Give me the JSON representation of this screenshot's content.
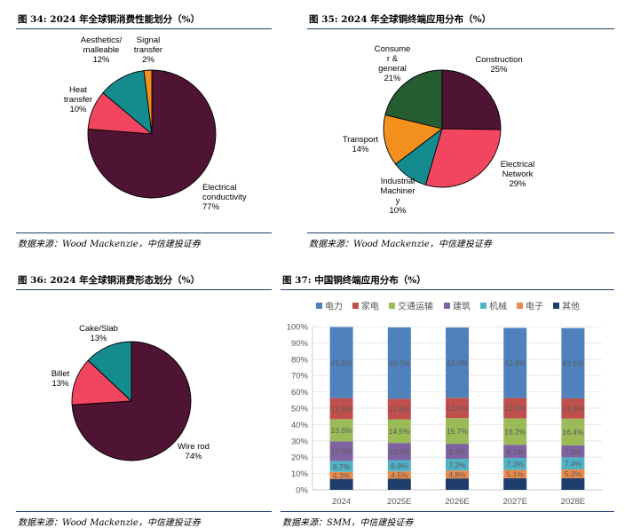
{
  "charts": {
    "c34": {
      "title": "图 34: 2024 年全球铜消费性能划分（%）",
      "source": "数据来源：Wood Mackenzie，中信建投证券"
    },
    "c35": {
      "title": "图 35: 2024 年全球铜终端应用分布（%）",
      "source": "数据来源：Wood Mackenzie，中信建投证券"
    },
    "c36": {
      "title": "图 36: 2024 年全球铜消费形态划分（%）",
      "source": "数据来源：Wood Mackenzie，中信建投证券"
    },
    "c37": {
      "title": "图 37: 中国铜终端应用分布（%）",
      "source": "数据来源：SMM，中信建投证券"
    }
  },
  "chart_data": [
    {
      "type": "pie",
      "title": "图 34: 2024 年全球铜消费性能划分（%）",
      "slices": [
        {
          "label": [
            "Electrical",
            "conductivity"
          ],
          "value": 77,
          "text": "77%",
          "color": "#4f1434"
        },
        {
          "label": [
            "Heat",
            "transfer"
          ],
          "value": 10,
          "text": "10%",
          "color": "#f2455f"
        },
        {
          "label": [
            "Aesthetics/",
            "malleable"
          ],
          "value": 12,
          "text": "12%",
          "color": "#138b8f"
        },
        {
          "label": [
            "Signal",
            "transfer"
          ],
          "value": 2,
          "text": "2%",
          "color": "#f4911e"
        }
      ]
    },
    {
      "type": "pie",
      "title": "图 35: 2024 年全球铜终端应用分布（%）",
      "slices": [
        {
          "label": [
            "Construction"
          ],
          "value": 25,
          "text": "25%",
          "color": "#4f1434"
        },
        {
          "label": [
            "Electrical",
            "Network"
          ],
          "value": 29,
          "text": "29%",
          "color": "#f2455f"
        },
        {
          "label": [
            "Industrial",
            "Machiner",
            "y"
          ],
          "value": 10,
          "text": "10%",
          "color": "#138b8f"
        },
        {
          "label": [
            "Transport"
          ],
          "value": 14,
          "text": "14%",
          "color": "#f4911e"
        },
        {
          "label": [
            "Consume",
            "r &",
            "general"
          ],
          "value": 21,
          "text": "21%",
          "color": "#265c31"
        }
      ]
    },
    {
      "type": "pie",
      "title": "图 36: 2024 年全球铜消费形态划分（%）",
      "slices": [
        {
          "label": [
            "Wire rod"
          ],
          "value": 74,
          "text": "74%",
          "color": "#4f1434"
        },
        {
          "label": [
            "Billet"
          ],
          "value": 13,
          "text": "13%",
          "color": "#f2455f"
        },
        {
          "label": [
            "Cake/Slab"
          ],
          "value": 13,
          "text": "13%",
          "color": "#138b8f"
        }
      ]
    },
    {
      "type": "bar",
      "stacked": true,
      "title": "图 37: 中国铜终端应用分布（%）",
      "categories": [
        "2024",
        "2025E",
        "2026E",
        "2027E",
        "2028E"
      ],
      "yticks": [
        "0%",
        "10%",
        "20%",
        "30%",
        "40%",
        "50%",
        "60%",
        "70%",
        "80%",
        "90%",
        "100%"
      ],
      "ylim": [
        0,
        100
      ],
      "legend_position": "top",
      "series": [
        {
          "name": "其他",
          "color": "#1f3d6b",
          "values": [
            6.7,
            6.8,
            7.0,
            7.1,
            7.2
          ],
          "labels": [
            "",
            "",
            "",
            "",
            ""
          ]
        },
        {
          "name": "电子",
          "color": "#ec8a4a",
          "values": [
            4.3,
            4.5,
            4.8,
            5.1,
            5.3
          ],
          "labels": [
            "4.3%",
            "4.5%",
            "4.8%",
            "5.1%",
            "5.3%"
          ]
        },
        {
          "name": "机械",
          "color": "#4fb2c6",
          "values": [
            6.7,
            6.9,
            7.2,
            7.3,
            7.4
          ],
          "labels": [
            "6.7%",
            "6.9%",
            "7.2%",
            "7.3%",
            "7.4%"
          ]
        },
        {
          "name": "建筑",
          "color": "#8064a2",
          "values": [
            12.0,
            10.5,
            9.2,
            8.1,
            7.3
          ],
          "labels": [
            "12.0%",
            "10.5%",
            "9.2%",
            "8.1%",
            "7.3%"
          ]
        },
        {
          "name": "交通运输",
          "color": "#9bbb59",
          "values": [
            13.6,
            14.5,
            15.7,
            16.2,
            16.4
          ],
          "labels": [
            "13.6%",
            "14.5%",
            "15.7%",
            "16.2%",
            "16.4%"
          ]
        },
        {
          "name": "家电",
          "color": "#c0504d",
          "values": [
            12.9,
            12.6,
            12.5,
            12.5,
            12.4
          ],
          "labels": [
            "12.9%",
            "12.6%",
            "12.5%",
            "12.5%",
            "12.4%"
          ]
        },
        {
          "name": "电力",
          "color": "#4f81bd",
          "values": [
            43.5,
            43.7,
            43.0,
            42.9,
            43.1
          ],
          "labels": [
            "43.5%",
            "43.7%",
            "43.0%",
            "42.9%",
            "43.1%"
          ]
        }
      ],
      "legend_order": [
        "电力",
        "家电",
        "交通运输",
        "建筑",
        "机械",
        "电子",
        "其他"
      ]
    }
  ]
}
